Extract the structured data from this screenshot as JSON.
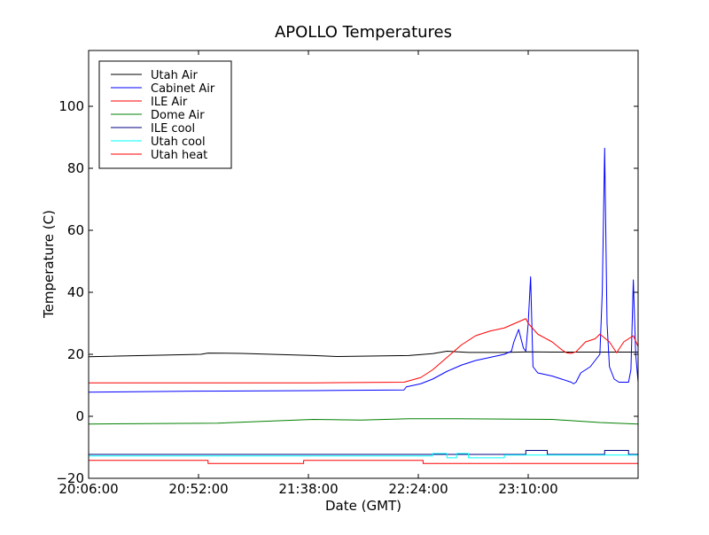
{
  "chart_data": {
    "type": "line",
    "title": "APOLLO Temperatures",
    "xlabel": "Date (GMT)",
    "ylabel": "Temperature (C)",
    "xlim": [
      "20:06:00",
      "23:56:00"
    ],
    "xlim_minutes": [
      1206,
      1436
    ],
    "ylim": [
      -20,
      118
    ],
    "x_ticks": [
      {
        "label": "20:06:00",
        "minutes": 1206
      },
      {
        "label": "20:52:00",
        "minutes": 1252
      },
      {
        "label": "21:38:00",
        "minutes": 1298
      },
      {
        "label": "22:24:00",
        "minutes": 1344
      },
      {
        "label": "23:10:00",
        "minutes": 1390
      }
    ],
    "y_ticks": [
      {
        "label": "−20",
        "value": -20
      },
      {
        "label": "0",
        "value": 0
      },
      {
        "label": "20",
        "value": 20
      },
      {
        "label": "40",
        "value": 40
      },
      {
        "label": "60",
        "value": 60
      },
      {
        "label": "80",
        "value": 80
      },
      {
        "label": "100",
        "value": 100
      }
    ],
    "grid": false,
    "legend_position": "top-left",
    "series": [
      {
        "name": "Utah Air",
        "color": "#000000",
        "x": [
          1206,
          1240,
          1253,
          1256,
          1270,
          1300,
          1310,
          1340,
          1350,
          1356,
          1365,
          1380,
          1390,
          1400,
          1436
        ],
        "y": [
          19.2,
          19.8,
          20.0,
          20.4,
          20.3,
          19.6,
          19.3,
          19.6,
          20.2,
          21.0,
          20.6,
          20.6,
          20.8,
          20.7,
          20.7
        ]
      },
      {
        "name": "Cabinet Air",
        "color": "#0000ff",
        "x": [
          1206,
          1250,
          1300,
          1338,
          1339,
          1345,
          1350,
          1356,
          1362,
          1368,
          1374,
          1380,
          1383,
          1384,
          1386,
          1388,
          1389,
          1390,
          1391,
          1392,
          1394,
          1400,
          1404,
          1408,
          1409,
          1410,
          1412,
          1416,
          1418,
          1420,
          1421,
          1422,
          1423,
          1424,
          1426,
          1428,
          1432,
          1433,
          1434,
          1435,
          1436
        ],
        "y": [
          7.8,
          8.1,
          8.3,
          8.5,
          9.5,
          10.5,
          12.0,
          14.5,
          16.5,
          18.0,
          19.0,
          20.0,
          21.0,
          24.0,
          28.0,
          22.0,
          21.0,
          30.0,
          45.0,
          16.0,
          14.0,
          13.0,
          12.0,
          11.0,
          10.5,
          11.0,
          14.0,
          16.0,
          18.0,
          20.0,
          40.0,
          86.5,
          30.0,
          16.0,
          12.0,
          11.0,
          11.0,
          15.0,
          44.0,
          20.0,
          11.0
        ]
      },
      {
        "name": "ILE Air",
        "color": "#ff0000",
        "x": [
          1206,
          1300,
          1338,
          1345,
          1350,
          1356,
          1362,
          1368,
          1374,
          1380,
          1386,
          1389,
          1390,
          1394,
          1400,
          1404,
          1406,
          1408,
          1410,
          1414,
          1418,
          1420,
          1424,
          1427,
          1430,
          1434,
          1436
        ],
        "y": [
          10.8,
          10.8,
          11.0,
          12.5,
          15.0,
          19.0,
          23.0,
          26.0,
          27.5,
          28.5,
          30.5,
          31.5,
          30.0,
          26.5,
          24.0,
          21.5,
          20.5,
          20.3,
          20.8,
          24.0,
          25.0,
          26.5,
          24.0,
          20.5,
          24.0,
          26.0,
          22.5
        ]
      },
      {
        "name": "Dome Air",
        "color": "#008000",
        "x": [
          1206,
          1260,
          1300,
          1320,
          1340,
          1360,
          1380,
          1400,
          1420,
          1436
        ],
        "y": [
          -2.5,
          -2.2,
          -1.0,
          -1.2,
          -0.8,
          -0.8,
          -0.9,
          -1.0,
          -2.0,
          -2.5
        ]
      },
      {
        "name": "ILE cool",
        "color": "#000080",
        "x": [
          1206,
          1389,
          1389,
          1398,
          1398,
          1422,
          1422,
          1432,
          1432,
          1436
        ],
        "y": [
          -12.3,
          -12.3,
          -11.0,
          -11.0,
          -12.3,
          -12.3,
          -11.0,
          -11.0,
          -12.3,
          -12.3
        ]
      },
      {
        "name": "Utah cool",
        "color": "#00ffff",
        "x": [
          1206,
          1350,
          1350,
          1356,
          1356,
          1360,
          1360,
          1365,
          1365,
          1380,
          1380,
          1436
        ],
        "y": [
          -12.8,
          -12.8,
          -12.0,
          -12.0,
          -13.4,
          -13.4,
          -12.0,
          -12.0,
          -13.4,
          -13.4,
          -12.5,
          -12.5
        ]
      },
      {
        "name": "Utah heat",
        "color": "#ff0000",
        "x": [
          1206,
          1256,
          1256,
          1296,
          1296,
          1346,
          1346,
          1436
        ],
        "y": [
          -14.2,
          -14.2,
          -15.2,
          -15.2,
          -14.2,
          -14.2,
          -15.2,
          -15.2
        ]
      }
    ]
  }
}
